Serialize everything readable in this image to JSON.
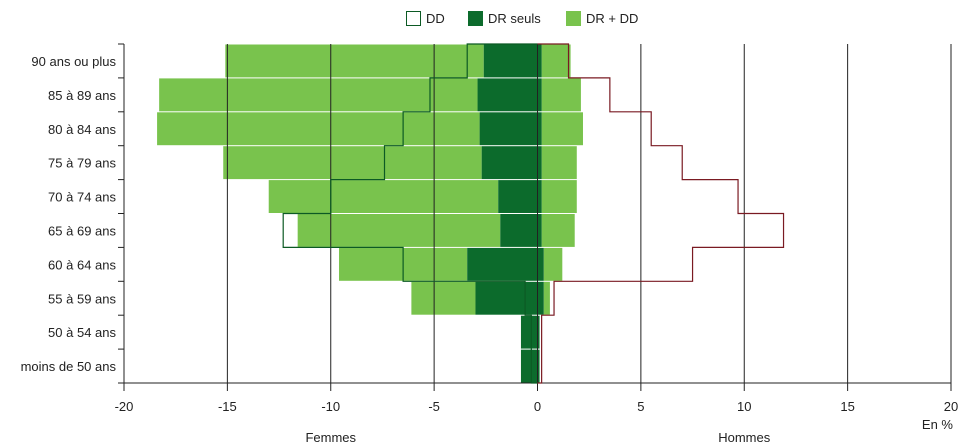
{
  "chart_data": {
    "type": "bar",
    "orientation": "horizontal",
    "stacked_diverging": true,
    "categories": [
      "90 ans ou plus",
      "85 à 89 ans",
      "80 à 84 ans",
      "75 à 79 ans",
      "70 à 74 ans",
      "65 à 69 ans",
      "60 à 64 ans",
      "55 à 59 ans",
      "50 à 54 ans",
      "moins de 50 ans"
    ],
    "xlim": [
      -20,
      20
    ],
    "xticks": [
      -20,
      -15,
      -10,
      -5,
      0,
      5,
      10,
      15,
      20
    ],
    "xlabel_left": "Femmes",
    "xlabel_right": "Hommes",
    "unit_label": "En %",
    "legend": {
      "position": "top",
      "items": [
        {
          "key": "dd",
          "label": "DD"
        },
        {
          "key": "dr_seuls",
          "label": "DR seuls"
        },
        {
          "key": "dr_dd",
          "label": "DR + DD"
        }
      ]
    },
    "series": [
      {
        "key": "dr_seuls",
        "style": "filled",
        "femmes": [
          2.6,
          2.9,
          2.8,
          2.7,
          1.9,
          1.8,
          3.4,
          3.0,
          0.8,
          0.8
        ],
        "hommes": [
          0.2,
          0.2,
          0.2,
          0.2,
          0.2,
          0.2,
          0.3,
          0.3,
          0.1,
          0.1
        ]
      },
      {
        "key": "dr_dd",
        "style": "filled",
        "femmes": [
          12.5,
          15.4,
          15.6,
          12.5,
          11.1,
          9.8,
          6.2,
          3.1,
          0.0,
          0.0
        ],
        "hommes": [
          1.4,
          1.9,
          2.0,
          1.7,
          1.7,
          1.6,
          0.9,
          0.3,
          0.0,
          0.0
        ]
      },
      {
        "key": "dd",
        "style": "outline",
        "femmes": [
          3.4,
          5.2,
          6.5,
          7.4,
          10.0,
          12.3,
          6.5,
          0.6,
          0.3,
          0.3
        ],
        "hommes": [
          1.5,
          3.5,
          5.5,
          7.0,
          9.7,
          11.9,
          7.5,
          0.8,
          0.2,
          0.2
        ]
      }
    ],
    "colors": {
      "dr_seuls": "#0c6b2c",
      "dr_dd": "#79c34d",
      "dd_femmes_outline": "#0c5a24",
      "dd_hommes_outline": "#7a1a22",
      "grid": "#222222"
    },
    "grid": true
  }
}
